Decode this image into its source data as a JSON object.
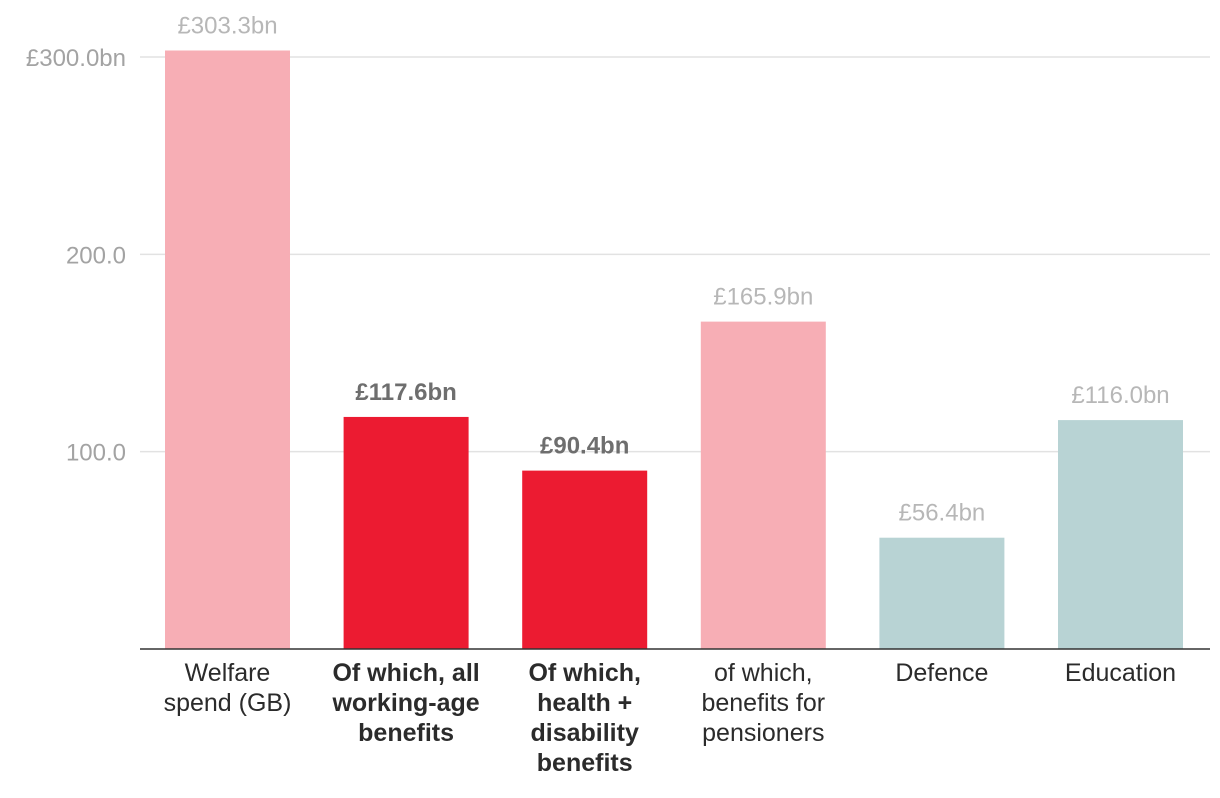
{
  "chart_data": {
    "type": "bar",
    "title": "",
    "xlabel": "",
    "ylabel": "",
    "ylim": [
      0,
      300
    ],
    "yticks": [
      {
        "value": 300,
        "label": "£300.0bn"
      },
      {
        "value": 200,
        "label": "200.0"
      },
      {
        "value": 100,
        "label": "100.0"
      }
    ],
    "grid": true,
    "bars": [
      {
        "category": [
          "Welfare",
          "spend (GB)"
        ],
        "value": 303.3,
        "label": "£303.3bn",
        "highlight": false,
        "color": "#f7aeb5"
      },
      {
        "category": [
          "Of which, all",
          "working-age",
          "benefits"
        ],
        "value": 117.6,
        "label": "£117.6bn",
        "highlight": true,
        "color": "#ec1b31"
      },
      {
        "category": [
          "Of which,",
          "health +",
          "disability",
          "benefits"
        ],
        "value": 90.4,
        "label": "£90.4bn",
        "highlight": true,
        "color": "#ec1b31"
      },
      {
        "category": [
          "of which,",
          "benefits for",
          "pensioners"
        ],
        "value": 165.9,
        "label": "£165.9bn",
        "highlight": false,
        "color": "#f7aeb5"
      },
      {
        "category": [
          "Defence"
        ],
        "value": 56.4,
        "label": "£56.4bn",
        "highlight": false,
        "color": "#b8d3d4"
      },
      {
        "category": [
          "Education"
        ],
        "value": 116.0,
        "label": "£116.0bn",
        "highlight": false,
        "color": "#b8d3d4"
      }
    ]
  }
}
